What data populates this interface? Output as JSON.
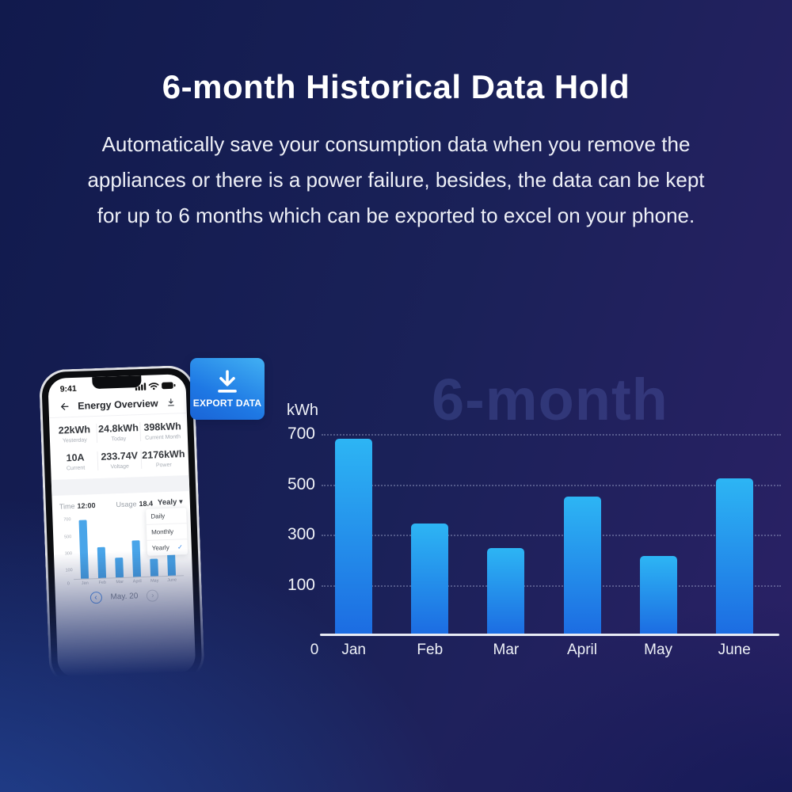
{
  "hero": {
    "title": "6-month Historical Data Hold",
    "description_lines": [
      "Automatically save your consumption data when you remove the",
      "appliances or there is a power failure, besides, the data can be kept",
      "for up to 6 months which can be exported to excel on your phone."
    ]
  },
  "watermark": "6-month",
  "export_button": {
    "label": "EXPORT DATA"
  },
  "phone": {
    "status_time": "9:41",
    "nav_title": "Energy Overview",
    "stats": [
      {
        "value": "22kWh",
        "label": "Yesterday"
      },
      {
        "value": "24.8kWh",
        "label": "Today"
      },
      {
        "value": "398kWh",
        "label": "Current Month"
      },
      {
        "value": "10A",
        "label": "Current"
      },
      {
        "value": "233.74V",
        "label": "Voltage"
      },
      {
        "value": "2176kWh",
        "label": "Power"
      }
    ],
    "controls": {
      "time_label": "Time",
      "time_value": "12:00",
      "usage_label": "Usage",
      "usage_value": "18.4",
      "period_value": "Yealy",
      "period_caret": "▾"
    },
    "dropdown_items": [
      {
        "label": "Daily",
        "selected": false
      },
      {
        "label": "Monthly",
        "selected": false
      },
      {
        "label": "Yearly",
        "selected": true,
        "check": "✓"
      }
    ],
    "pagination": {
      "prev": "‹",
      "label": "May. 20",
      "next": "›"
    }
  },
  "chart_data": [
    {
      "id": "main-chart",
      "type": "bar",
      "ylabel": "kWh",
      "categories": [
        "Jan",
        "Feb",
        "Mar",
        "April",
        "May",
        "June"
      ],
      "values": [
        680,
        345,
        245,
        450,
        215,
        525
      ],
      "yticks": [
        700,
        500,
        300,
        100
      ],
      "zero_label": "0",
      "ylim": [
        0,
        700
      ],
      "grid": "horizontal-dotted",
      "legend": "none",
      "watermark": "6-month",
      "bar_color_top": "#2db5f4",
      "bar_color_bottom": "#1c6ce2"
    },
    {
      "id": "phone-mini-chart",
      "type": "bar",
      "categories": [
        "Jan",
        "Feb",
        "Mar",
        "April",
        "May",
        "June"
      ],
      "values": [
        690,
        365,
        235,
        435,
        205,
        340
      ],
      "yticks": [
        700,
        500,
        300,
        100
      ],
      "zero_label": "0",
      "ylim": [
        0,
        750
      ],
      "grid": "none",
      "legend": "none",
      "bar_color": "#49a5e9"
    }
  ],
  "colors": {
    "accent_blue": "#2f86eb",
    "export_gradient_top": "#41b0f3",
    "export_gradient_bottom": "#1a64d6",
    "background_top_left": "#111a4d",
    "background_top_right": "#2b2166",
    "background_bottom_left": "#1d3e8c",
    "background_bottom_right": "#10235c"
  }
}
